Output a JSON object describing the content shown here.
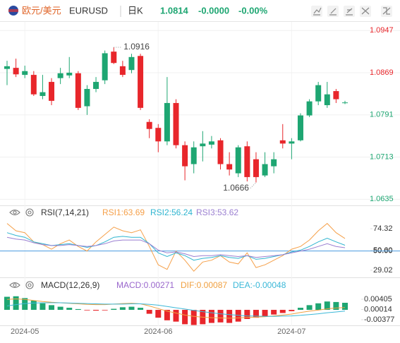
{
  "header": {
    "name": "欧元/美元",
    "symbol": "EURUSD",
    "period": "日K",
    "price": 1.0814,
    "change": "-0.0000",
    "change_pct": "-0.00%"
  },
  "chart_data": [
    {
      "type": "candlestick",
      "categories": [
        null,
        null,
        "2024-05",
        null,
        null,
        null,
        null,
        null,
        null,
        null,
        null,
        null,
        null,
        null,
        null,
        null,
        null,
        "2024-06",
        null,
        null,
        null,
        null,
        null,
        null,
        null,
        null,
        null,
        null,
        null,
        null,
        null,
        null,
        "2024-07",
        null,
        null,
        null,
        null,
        null,
        null
      ],
      "open": [
        1.0876,
        1.0878,
        1.0865,
        1.0865,
        1.0826,
        1.0852,
        1.0859,
        1.0864,
        1.0868,
        1.0807,
        1.0839,
        1.0855,
        1.0908,
        1.0881,
        1.0874,
        1.09,
        1.0778,
        1.0767,
        1.0742,
        1.0813,
        1.0735,
        1.07,
        1.0733,
        1.0736,
        1.0744,
        1.07,
        1.0683,
        1.0733,
        1.0709,
        1.0679,
        1.0696,
        1.0744,
        1.0738,
        1.0744,
        1.079,
        1.0816,
        1.0809,
        1.0835,
        1.0813
      ],
      "high": [
        1.0891,
        1.0895,
        1.0882,
        1.0872,
        1.0865,
        1.0859,
        1.0878,
        1.0898,
        1.0872,
        1.0846,
        1.0861,
        1.091,
        1.0916,
        1.0891,
        1.0904,
        1.0904,
        1.0783,
        1.0774,
        1.0861,
        1.082,
        1.0742,
        1.0742,
        1.0761,
        1.0752,
        1.0748,
        1.0722,
        1.0735,
        1.0742,
        1.0722,
        1.0722,
        1.0722,
        1.0774,
        1.0748,
        1.0794,
        1.082,
        1.0852,
        1.0852,
        1.0839,
        1.0817
      ],
      "low": [
        1.0846,
        1.0861,
        1.0859,
        1.0826,
        1.082,
        1.0809,
        1.0848,
        1.0859,
        1.08,
        1.0791,
        1.0833,
        1.0848,
        1.0885,
        1.0861,
        1.0868,
        1.08,
        1.0748,
        1.0722,
        1.0735,
        1.0729,
        1.067,
        1.0683,
        1.0705,
        1.0729,
        1.069,
        1.0679,
        1.0676,
        1.0668,
        1.0666,
        1.0676,
        1.0683,
        1.0729,
        1.0709,
        1.0742,
        1.0787,
        1.0809,
        1.0804,
        1.0813,
        1.0811
      ],
      "close": [
        1.0881,
        1.0866,
        1.0872,
        1.0829,
        1.0833,
        1.0817,
        1.0868,
        1.0869,
        1.0804,
        1.0839,
        1.0852,
        1.0905,
        1.0887,
        1.0865,
        1.0898,
        1.0804,
        1.0765,
        1.0742,
        1.0813,
        1.0735,
        1.0696,
        1.0731,
        1.0738,
        1.0742,
        1.07,
        1.069,
        1.0731,
        1.0676,
        1.0676,
        1.07,
        1.0709,
        1.0738,
        1.0742,
        1.079,
        1.0816,
        1.0846,
        1.0829,
        1.082,
        1.0814
      ],
      "up_color": "#1ea672",
      "down_color": "#e8262b",
      "ylim": [
        1.0625,
        1.0963
      ],
      "yticks": [
        1.0947,
        1.0869,
        1.0791,
        1.0713,
        1.0635
      ],
      "annotations": [
        "1.0916",
        "1.0666"
      ],
      "grid": true
    },
    {
      "type": "line",
      "title": "RSI(7,14,21)",
      "series": [
        {
          "name": "RSI1:63.69",
          "color": "#f5a04a",
          "values": [
            80,
            72,
            70,
            60,
            57,
            52,
            58,
            62,
            55,
            50,
            60,
            68,
            76,
            72,
            70,
            73,
            55,
            35,
            30,
            50,
            40,
            28,
            38,
            40,
            45,
            38,
            36,
            48,
            32,
            35,
            40,
            45,
            52,
            55,
            62,
            72,
            80,
            70,
            63.69
          ]
        },
        {
          "name": "RSI2:56.24",
          "color": "#2fb5d0",
          "values": [
            70,
            67,
            65,
            60,
            58,
            56,
            57,
            58,
            56,
            54,
            56,
            60,
            65,
            66,
            65,
            65,
            58,
            48,
            44,
            48,
            45,
            40,
            42,
            43,
            45,
            43,
            42,
            45,
            41,
            42,
            44,
            46,
            49,
            51,
            55,
            60,
            64,
            60,
            56.24
          ]
        },
        {
          "name": "RSI3:53.62",
          "color": "#9b7fd1",
          "values": [
            65,
            63,
            62,
            59,
            57,
            56,
            56,
            57,
            56,
            55,
            56,
            58,
            61,
            62,
            62,
            62,
            58,
            51,
            48,
            49,
            47,
            44,
            45,
            45,
            46,
            45,
            44,
            45,
            43,
            44,
            45,
            46,
            48,
            50,
            52,
            55,
            58,
            55,
            53.62
          ]
        }
      ],
      "ylim": [
        21.3,
        82.8
      ],
      "yticks": [
        74.32,
        {
          "value": 50.6,
          "label": "50.60"
        },
        {
          "value": 50,
          "label": "50.00"
        },
        29.02
      ],
      "hline": 50,
      "hline_color": "#4a9be0"
    },
    {
      "type": "macd",
      "title": "MACD(12,26,9)",
      "series": [
        {
          "name": "MACD:0.00271",
          "kind": "bar",
          "color": "#9966cc",
          "up_color": "#1ea672",
          "down_color": "#e8262b",
          "values": [
            0.005,
            0.0052,
            0.0045,
            0.0035,
            0.0025,
            0.0018,
            0.0012,
            0.0008,
            0.0003,
            -0.0002,
            -0.0003,
            -0.0002,
            0.0004,
            0.001,
            0.0012,
            0.0008,
            -0.0015,
            -0.003,
            -0.004,
            -0.0045,
            -0.0055,
            -0.0058,
            -0.0055,
            -0.005,
            -0.0048,
            -0.005,
            -0.0045,
            -0.0035,
            -0.003,
            -0.0025,
            -0.0018,
            -0.0012,
            -0.0005,
            0.0008,
            0.0018,
            0.0025,
            0.0032,
            0.003,
            0.00271
          ]
        },
        {
          "name": "DIF:0.00087",
          "kind": "line",
          "color": "#f0a040",
          "values": [
            0.004,
            0.0042,
            0.004,
            0.0036,
            0.0032,
            0.0029,
            0.0027,
            0.0025,
            0.0023,
            0.0021,
            0.002,
            0.002,
            0.0022,
            0.0024,
            0.0025,
            0.0023,
            0.0015,
            0.0005,
            -0.0005,
            -0.0012,
            -0.002,
            -0.0025,
            -0.0028,
            -0.003,
            -0.0031,
            -0.0032,
            -0.0031,
            -0.0029,
            -0.0028,
            -0.0026,
            -0.0023,
            -0.002,
            -0.0016,
            -0.001,
            -0.0005,
            -0.0001,
            0.0004,
            0.0007,
            0.00087
          ]
        },
        {
          "name": "DEA:-0.00048",
          "kind": "line",
          "color": "#3bb8d8",
          "values": [
            0.0015,
            0.002,
            0.0024,
            0.0026,
            0.0027,
            0.0027,
            0.0027,
            0.0026,
            0.0025,
            0.0024,
            0.0023,
            0.0022,
            0.0022,
            0.0022,
            0.0023,
            0.0023,
            0.0021,
            0.0018,
            0.0013,
            0.0008,
            0.0003,
            -0.0002,
            -0.0007,
            -0.0011,
            -0.0015,
            -0.0018,
            -0.0021,
            -0.0023,
            -0.0024,
            -0.0025,
            -0.0025,
            -0.0024,
            -0.0023,
            -0.0021,
            -0.0018,
            -0.0015,
            -0.0011,
            -0.0008,
            -0.00048
          ]
        }
      ],
      "ylim": [
        -0.0062,
        0.0073
      ],
      "yticks": [
        0.00405,
        0.00014,
        -0.00377
      ]
    }
  ]
}
